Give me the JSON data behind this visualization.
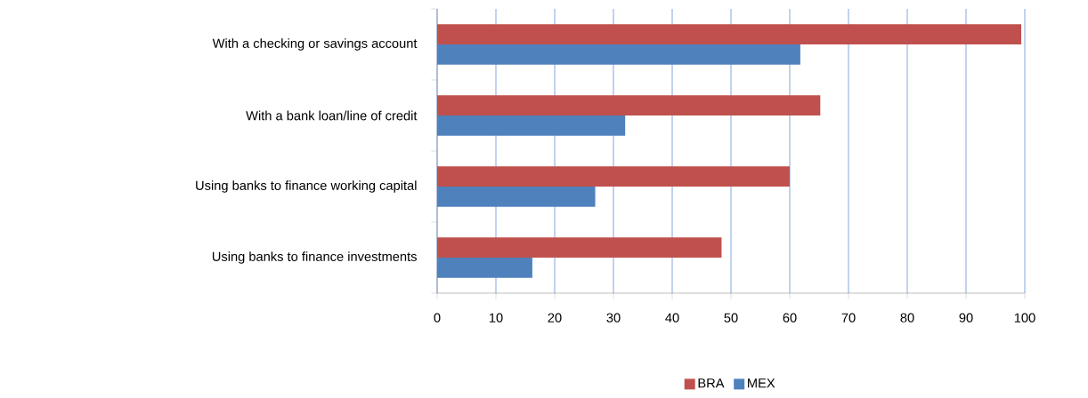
{
  "chart_data": {
    "type": "bar",
    "orientation": "horizontal",
    "categories": [
      "With a checking or savings account",
      "With a bank loan/line of credit",
      "Using banks to finance working capital",
      "Using banks to finance investments"
    ],
    "series": [
      {
        "name": "BRA",
        "color": "#c0504d",
        "values": [
          99.4,
          65.2,
          60.0,
          48.4
        ]
      },
      {
        "name": "MEX",
        "color": "#4f81bd",
        "values": [
          61.8,
          32.0,
          26.9,
          16.2
        ]
      }
    ],
    "xlim": [
      0,
      100
    ],
    "xticks": [
      0,
      10,
      20,
      30,
      40,
      50,
      60,
      70,
      80,
      90,
      100
    ],
    "grid": "x",
    "legend": "bottom"
  }
}
